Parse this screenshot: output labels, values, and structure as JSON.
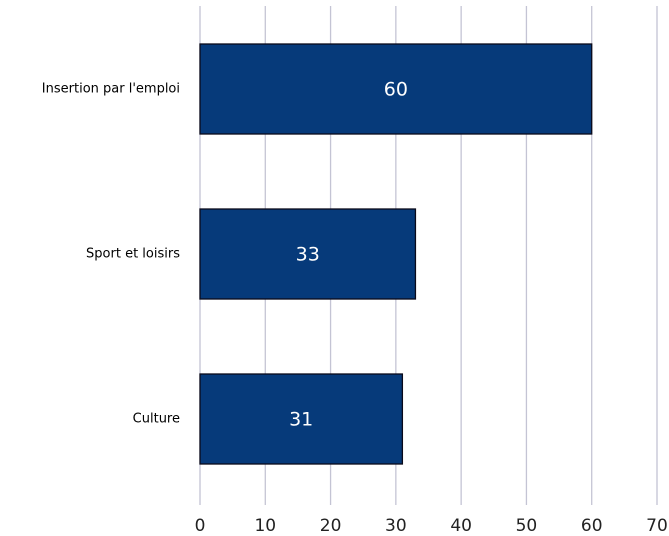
{
  "chart_data": {
    "type": "bar",
    "categories": [
      "Insertion par l'emploi",
      "Sport et loisirs",
      "Culture"
    ],
    "values": [
      60,
      33,
      31
    ],
    "color": "#063a7a",
    "xlim": [
      0,
      70
    ],
    "xticks": [
      0,
      10,
      20,
      30,
      40,
      50,
      60,
      70
    ],
    "grid": true
  }
}
